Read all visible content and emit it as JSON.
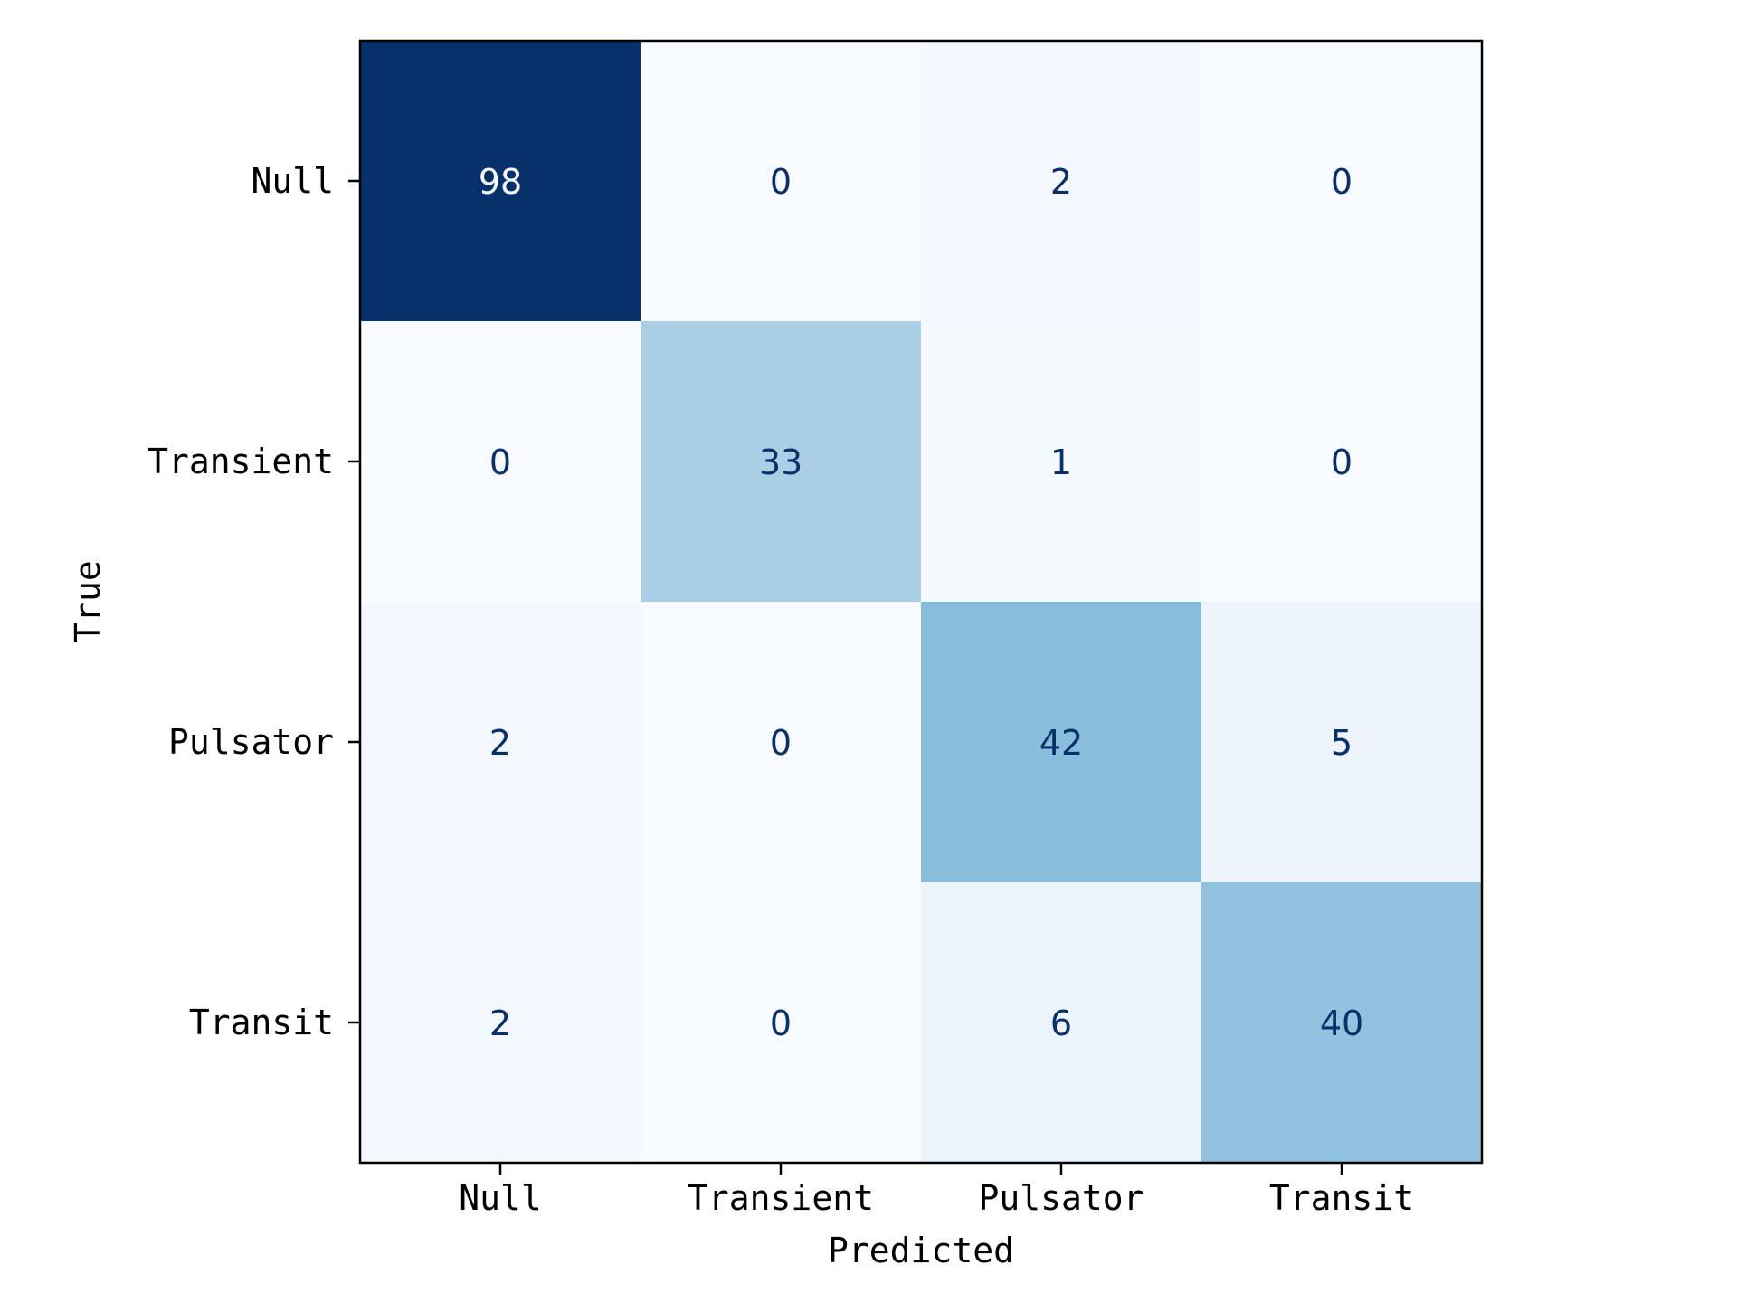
{
  "chart_data": {
    "type": "heatmap",
    "subtype": "confusion-matrix",
    "title": "",
    "xlabel": "Predicted",
    "ylabel": "True",
    "x_categories": [
      "Null",
      "Transient",
      "Pulsator",
      "Transit"
    ],
    "y_categories": [
      "Null",
      "Transient",
      "Pulsator",
      "Transit"
    ],
    "values": [
      [
        98,
        0,
        2,
        0
      ],
      [
        0,
        33,
        1,
        0
      ],
      [
        2,
        0,
        42,
        5
      ],
      [
        2,
        0,
        6,
        40
      ]
    ],
    "colormap": "Blues",
    "value_range": [
      0,
      98
    ],
    "colorbar": false,
    "grid": false
  }
}
